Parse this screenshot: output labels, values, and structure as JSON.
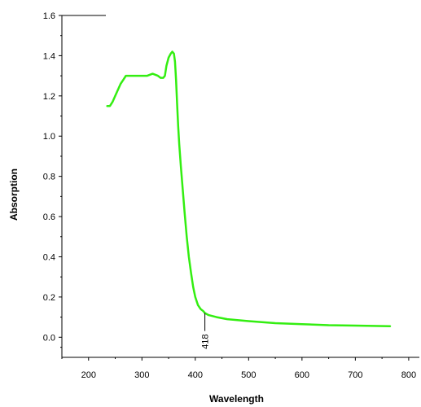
{
  "chart_data": {
    "type": "line",
    "title": "",
    "xlabel": "Wavelength",
    "ylabel": "Absorption",
    "xlim": [
      150,
      820
    ],
    "ylim": [
      -0.1,
      1.6
    ],
    "x_ticks": [
      200,
      300,
      400,
      500,
      600,
      700,
      800
    ],
    "y_ticks": [
      0.0,
      0.2,
      0.4,
      0.6,
      0.8,
      1.0,
      1.2,
      1.4,
      1.6
    ],
    "x_tick_labels": [
      "200",
      "300",
      "400",
      "500",
      "600",
      "700",
      "800"
    ],
    "y_tick_labels": [
      "0.0",
      "0.2",
      "0.4",
      "0.6",
      "0.8",
      "1.0",
      "1.2",
      "1.4",
      "1.6"
    ],
    "grid": false,
    "line_color": "#33ee11",
    "series": [
      {
        "x": [
          235,
          240,
          245,
          250,
          255,
          260,
          265,
          270,
          275,
          280,
          290,
          300,
          310,
          320,
          330,
          335,
          340,
          343,
          346,
          350,
          354,
          357,
          360,
          362,
          364,
          366,
          368,
          370,
          373,
          376,
          380,
          384,
          388,
          392,
          396,
          400,
          405,
          410,
          415,
          418,
          425,
          440,
          460,
          500,
          550,
          600,
          650,
          700,
          765
        ],
        "y": [
          1.15,
          1.15,
          1.17,
          1.2,
          1.23,
          1.26,
          1.28,
          1.3,
          1.3,
          1.3,
          1.3,
          1.3,
          1.3,
          1.31,
          1.3,
          1.29,
          1.29,
          1.3,
          1.35,
          1.39,
          1.41,
          1.42,
          1.41,
          1.37,
          1.28,
          1.16,
          1.05,
          0.96,
          0.85,
          0.75,
          0.62,
          0.5,
          0.4,
          0.32,
          0.25,
          0.2,
          0.16,
          0.14,
          0.13,
          0.12,
          0.11,
          0.1,
          0.09,
          0.08,
          0.07,
          0.065,
          0.06,
          0.058,
          0.055
        ]
      }
    ],
    "annotations": [
      {
        "x": 418,
        "y": 0.12,
        "text": "418"
      }
    ]
  }
}
